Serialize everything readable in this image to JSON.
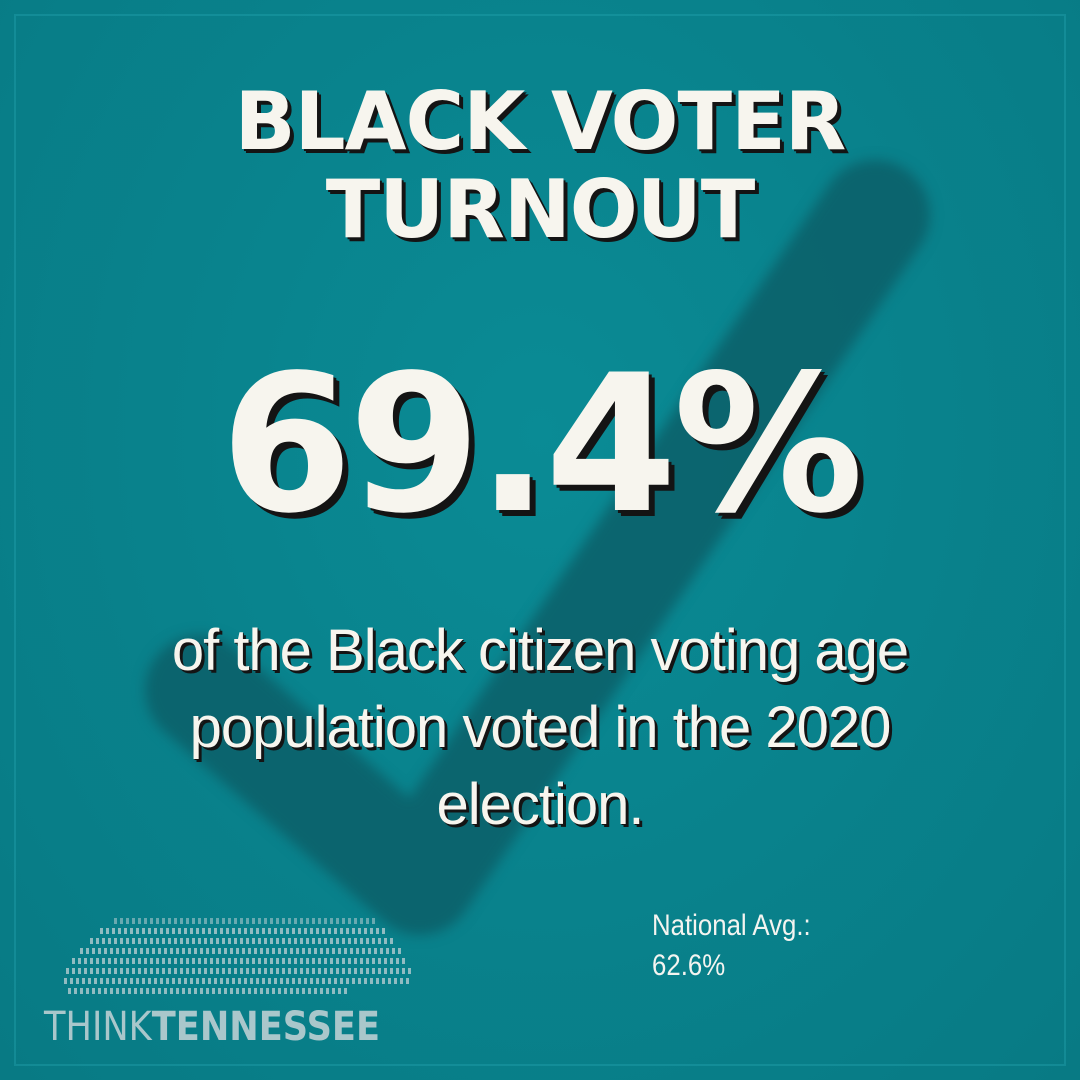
{
  "colors": {
    "background": "#09838d",
    "checkmark": "#0c5f68",
    "text": "#f7f5ee",
    "shadow": "#141414",
    "logo": "#a9c7cb"
  },
  "background_icon": "checkmark-icon",
  "title_lines": [
    "BLACK VOTER",
    "TURNOUT"
  ],
  "headline_value": "69.4%",
  "description_lines": [
    "of the Black citizen voting age",
    "population voted in the 2020",
    "election."
  ],
  "national_average": {
    "label": "National Avg.:",
    "value": "62.6%"
  },
  "logo": {
    "icon": "tennessee-map-dots-icon",
    "prefix": "THINK",
    "name": "TENNESSEE"
  }
}
